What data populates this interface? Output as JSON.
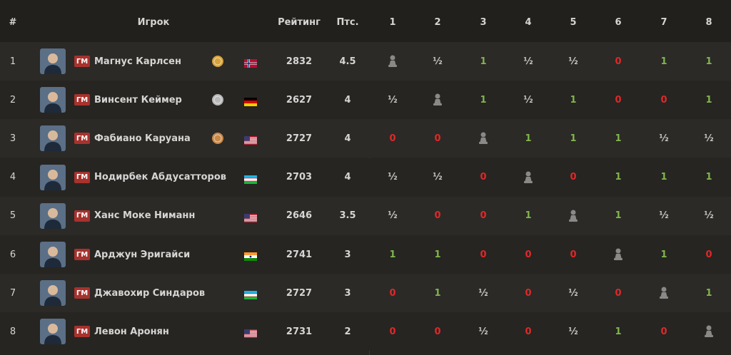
{
  "table": {
    "headers": [
      "#",
      "Игрок",
      "Рейтинг",
      "Птс.",
      "1",
      "2",
      "3",
      "4",
      "5",
      "6",
      "7",
      "8"
    ],
    "rows": [
      {
        "rank": "1",
        "title": "ГМ",
        "name": "Магнус Карлсен",
        "rating": "2832",
        "points": "4.5",
        "results": [
          null,
          "½",
          "1",
          "½",
          "½",
          "0",
          "1",
          "1"
        ]
      },
      {
        "rank": "2",
        "title": "ГМ",
        "name": "Винсент Кеймер",
        "rating": "2627",
        "points": "4",
        "results": [
          "½",
          null,
          "1",
          "½",
          "1",
          "0",
          "0",
          "1"
        ]
      },
      {
        "rank": "3",
        "title": "ГМ",
        "name": "Фабиано Каруана",
        "rating": "2727",
        "points": "4",
        "results": [
          "0",
          "0",
          null,
          "1",
          "1",
          "1",
          "½",
          "½"
        ]
      },
      {
        "rank": "4",
        "title": "ГМ",
        "name": "Нодирбек Абдусатторов",
        "rating": "2703",
        "points": "4",
        "results": [
          "½",
          "½",
          "0",
          null,
          "0",
          "1",
          "1",
          "1"
        ]
      },
      {
        "rank": "5",
        "title": "ГМ",
        "name": "Ханс Моке Ниманн",
        "rating": "2646",
        "points": "3.5",
        "results": [
          "½",
          "0",
          "0",
          "1",
          null,
          "1",
          "½",
          "½"
        ]
      },
      {
        "rank": "6",
        "title": "ГМ",
        "name": "Арджун Эригайси",
        "rating": "2741",
        "points": "3",
        "results": [
          "1",
          "1",
          "0",
          "0",
          "0",
          null,
          "1",
          "0"
        ]
      },
      {
        "rank": "7",
        "title": "ГМ",
        "name": "Джавохир Синдаров",
        "rating": "2727",
        "points": "3",
        "results": [
          "0",
          "1",
          "½",
          "0",
          "½",
          "0",
          null,
          "1"
        ]
      },
      {
        "rank": "8",
        "title": "ГМ",
        "name": "Левон Аронян",
        "rating": "2731",
        "points": "2",
        "results": [
          "0",
          "0",
          "½",
          "0",
          "½",
          "1",
          "0",
          null
        ]
      }
    ]
  }
}
